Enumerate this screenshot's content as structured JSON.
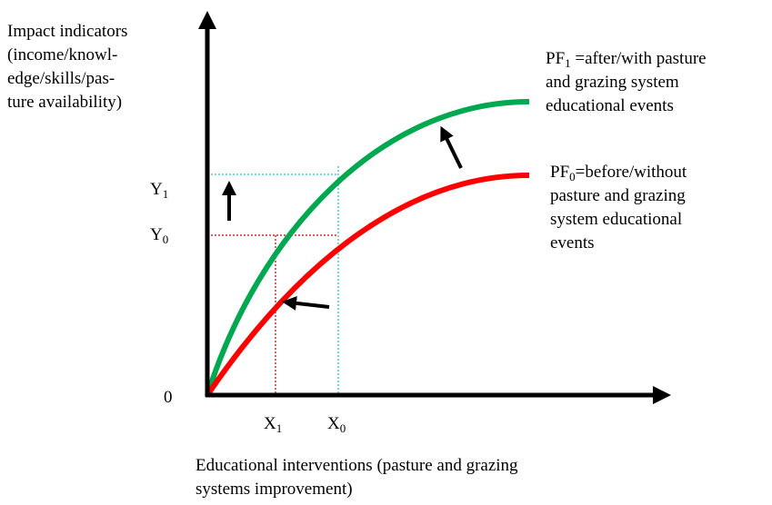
{
  "y_axis_label": [
    "Impact indicators",
    "(income/knowl-",
    "edge/skills/pas-",
    "ture availability)"
  ],
  "origin": "0",
  "y_ticks": [
    {
      "base": "Y",
      "sub": "1"
    },
    {
      "base": "Y",
      "sub": "0"
    }
  ],
  "x_ticks": [
    {
      "base": "X",
      "sub": "1"
    },
    {
      "base": "X",
      "sub": "0"
    }
  ],
  "x_axis_label": [
    "Educational interventions (pasture and grazing",
    "systems improvement)"
  ],
  "curves": [
    {
      "base": "PF",
      "sub": "1",
      "lines": [
        " =after/with pasture",
        "and grazing system",
        "educational events"
      ]
    },
    {
      "base": "PF",
      "sub": "0",
      "lines": [
        "=before/without",
        "pasture and grazing",
        "system educational",
        "events"
      ]
    }
  ]
}
